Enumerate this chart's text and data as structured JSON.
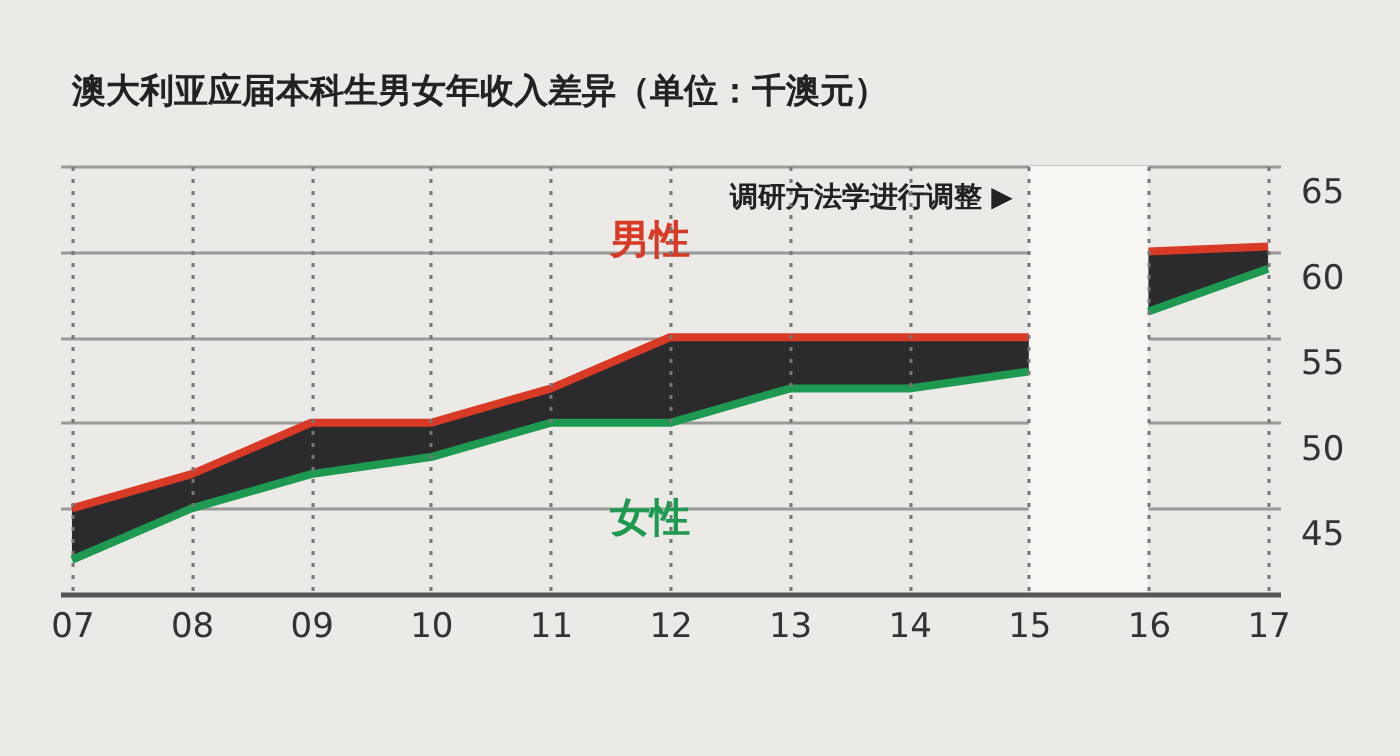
{
  "chart_data": {
    "type": "line",
    "title": "澳大利亚应届本科生男女年收入差异（单位：千澳元）",
    "categories": [
      "07",
      "08",
      "09",
      "10",
      "11",
      "12",
      "13",
      "14",
      "15",
      "16",
      "17"
    ],
    "series": [
      {
        "name": "男性",
        "color": "#d83a26",
        "values": [
          45,
          47,
          50,
          50,
          52,
          55,
          55,
          55,
          55,
          60,
          60.3
        ],
        "lower": [
          42,
          45,
          47,
          48,
          50,
          50,
          52,
          52,
          53,
          56.5,
          59
        ],
        "upper": [
          45,
          47,
          50,
          50,
          52,
          55,
          55,
          55,
          55,
          60,
          60.3
        ]
      },
      {
        "name": "女性",
        "color": "#1e9a50",
        "values": [
          42,
          45,
          47,
          48,
          50,
          50,
          52,
          52,
          53,
          56.5,
          59
        ]
      }
    ],
    "ylim": [
      40,
      65
    ],
    "yticks": [
      45,
      50,
      55,
      60,
      65
    ],
    "bands": [
      {
        "axis": "x",
        "from": "15",
        "to": "16",
        "label": "调研方法学进行调整 ▶",
        "color": "#f7f6f3"
      }
    ],
    "grid": true,
    "legend": false
  }
}
